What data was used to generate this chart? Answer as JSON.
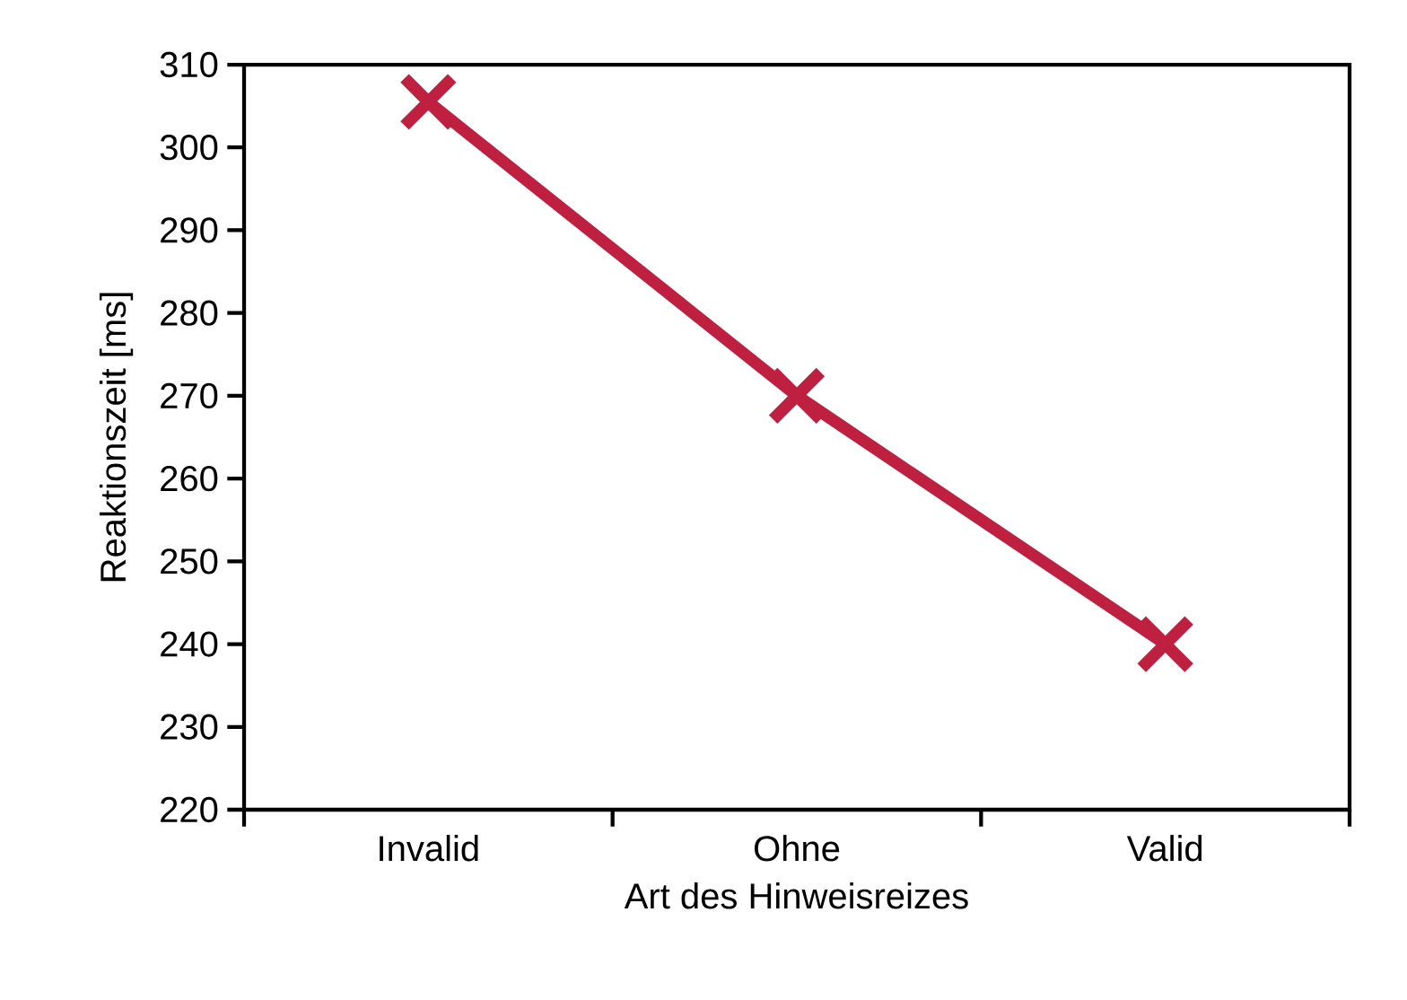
{
  "chart_data": {
    "type": "line",
    "xlabel": "Art des Hinweisreizes",
    "ylabel": "Reaktionszeit  [ms]",
    "categories": [
      "Invalid",
      "Ohne",
      "Valid"
    ],
    "series": [
      {
        "color": "#c0203f",
        "values": [
          305.5,
          270,
          240
        ]
      }
    ],
    "ylim": [
      220,
      310
    ],
    "yticks": [
      220,
      230,
      240,
      250,
      260,
      270,
      280,
      290,
      300,
      310
    ],
    "marker": "cross",
    "line_style": "solid",
    "grid": false
  }
}
